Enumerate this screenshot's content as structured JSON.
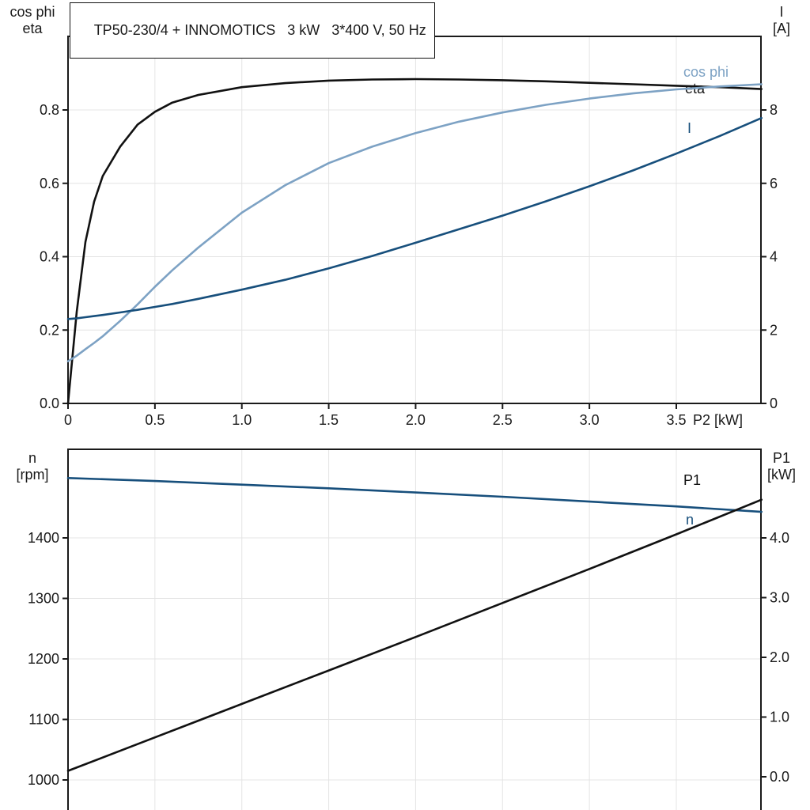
{
  "title": "TP50-230/4 + INNOMOTICS   3 kW   3*400 V, 50 Hz",
  "chart_data": [
    {
      "type": "line",
      "title": "TP50-230/4 + INNOMOTICS   3 kW   3*400 V, 50 Hz",
      "xlabel": "P2 [kW]",
      "xlim": [
        0,
        3.99
      ],
      "grid": true,
      "legend_position": "right-inline",
      "x_ticks": [
        {
          "v": 0,
          "label": "0"
        },
        {
          "v": 0.5,
          "label": "0.5"
        },
        {
          "v": 1.0,
          "label": "1.0"
        },
        {
          "v": 1.5,
          "label": "1.5"
        },
        {
          "v": 2.0,
          "label": "2.0"
        },
        {
          "v": 2.5,
          "label": "2.5"
        },
        {
          "v": 3.0,
          "label": "3.0"
        },
        {
          "v": 3.5,
          "label": "3.5"
        }
      ],
      "left_axis": {
        "label_lines": [
          "cos phi",
          "eta"
        ],
        "ylim": [
          0,
          1.0
        ],
        "ticks": [
          {
            "v": 0.0,
            "label": "0.0"
          },
          {
            "v": 0.2,
            "label": "0.2"
          },
          {
            "v": 0.4,
            "label": "0.4"
          },
          {
            "v": 0.6,
            "label": "0.6"
          },
          {
            "v": 0.8,
            "label": "0.8"
          }
        ]
      },
      "right_axis": {
        "label_lines": [
          "I",
          "[A]"
        ],
        "ylim": [
          0,
          10
        ],
        "ticks": [
          {
            "v": 0,
            "label": "0"
          },
          {
            "v": 2,
            "label": "2"
          },
          {
            "v": 4,
            "label": "4"
          },
          {
            "v": 6,
            "label": "6"
          },
          {
            "v": 8,
            "label": "8"
          }
        ]
      },
      "series": [
        {
          "name": "eta",
          "axis": "left",
          "color": "#111111",
          "x": [
            0,
            0.05,
            0.1,
            0.15,
            0.2,
            0.3,
            0.4,
            0.5,
            0.6,
            0.75,
            1.0,
            1.25,
            1.5,
            1.75,
            2.0,
            2.25,
            2.5,
            2.75,
            3.0,
            3.25,
            3.5,
            3.75,
            3.99
          ],
          "y": [
            0,
            0.25,
            0.44,
            0.55,
            0.62,
            0.7,
            0.76,
            0.795,
            0.82,
            0.841,
            0.862,
            0.873,
            0.88,
            0.883,
            0.884,
            0.883,
            0.881,
            0.878,
            0.874,
            0.87,
            0.866,
            0.862,
            0.857
          ]
        },
        {
          "name": "cos phi",
          "axis": "left",
          "color": "#7da2c4",
          "x": [
            0,
            0.05,
            0.1,
            0.15,
            0.2,
            0.3,
            0.4,
            0.5,
            0.6,
            0.75,
            1.0,
            1.25,
            1.5,
            1.75,
            2.0,
            2.25,
            2.5,
            2.75,
            3.0,
            3.25,
            3.5,
            3.75,
            3.99
          ],
          "y": [
            0.115,
            0.13,
            0.148,
            0.165,
            0.183,
            0.225,
            0.27,
            0.318,
            0.363,
            0.425,
            0.52,
            0.595,
            0.655,
            0.7,
            0.737,
            0.768,
            0.793,
            0.814,
            0.831,
            0.845,
            0.856,
            0.864,
            0.87
          ]
        },
        {
          "name": "I",
          "axis": "right",
          "color": "#174f7c",
          "x": [
            0,
            0.05,
            0.1,
            0.15,
            0.2,
            0.3,
            0.4,
            0.5,
            0.6,
            0.75,
            1.0,
            1.25,
            1.5,
            1.75,
            2.0,
            2.25,
            2.5,
            2.75,
            3.0,
            3.25,
            3.5,
            3.75,
            3.99
          ],
          "y": [
            2.3,
            2.32,
            2.35,
            2.38,
            2.41,
            2.48,
            2.55,
            2.63,
            2.71,
            2.85,
            3.1,
            3.37,
            3.68,
            4.02,
            4.38,
            4.75,
            5.12,
            5.51,
            5.92,
            6.35,
            6.81,
            7.29,
            7.78
          ]
        }
      ]
    },
    {
      "type": "line",
      "title": "",
      "xlabel": "",
      "xlim": [
        0,
        3.99
      ],
      "grid": true,
      "x_ticks": [],
      "left_axis": {
        "label_lines": [
          "n",
          "[rpm]"
        ],
        "ylim": [
          1000,
          1400
        ],
        "ticks": [
          {
            "v": 1000,
            "label": "1000"
          },
          {
            "v": 1100,
            "label": "1100"
          },
          {
            "v": 1200,
            "label": "1200"
          },
          {
            "v": 1300,
            "label": "1300"
          },
          {
            "v": 1400,
            "label": "1400"
          }
        ]
      },
      "right_axis": {
        "label_lines": [
          "P1",
          "[kW]"
        ],
        "ylim": [
          0.0,
          4.0
        ],
        "ticks": [
          {
            "v": 0.0,
            "label": "0.0"
          },
          {
            "v": 1.0,
            "label": "1.0"
          },
          {
            "v": 2.0,
            "label": "2.0"
          },
          {
            "v": 3.0,
            "label": "3.0"
          },
          {
            "v": 4.0,
            "label": "4.0"
          }
        ]
      },
      "series": [
        {
          "name": "n",
          "axis": "left",
          "color": "#174f7c",
          "x": [
            0,
            0.5,
            1.0,
            1.5,
            2.0,
            2.5,
            3.0,
            3.5,
            3.99
          ],
          "y": [
            1499,
            1494,
            1488,
            1482,
            1475,
            1468,
            1460,
            1452,
            1443
          ]
        },
        {
          "name": "P1",
          "axis": "right",
          "color": "#111111",
          "x": [
            0,
            0.5,
            1.0,
            1.5,
            2.0,
            2.5,
            3.0,
            3.5,
            3.99
          ],
          "y": [
            0.1,
            0.66,
            1.22,
            1.78,
            2.34,
            2.91,
            3.48,
            4.06,
            4.64
          ]
        }
      ]
    }
  ]
}
